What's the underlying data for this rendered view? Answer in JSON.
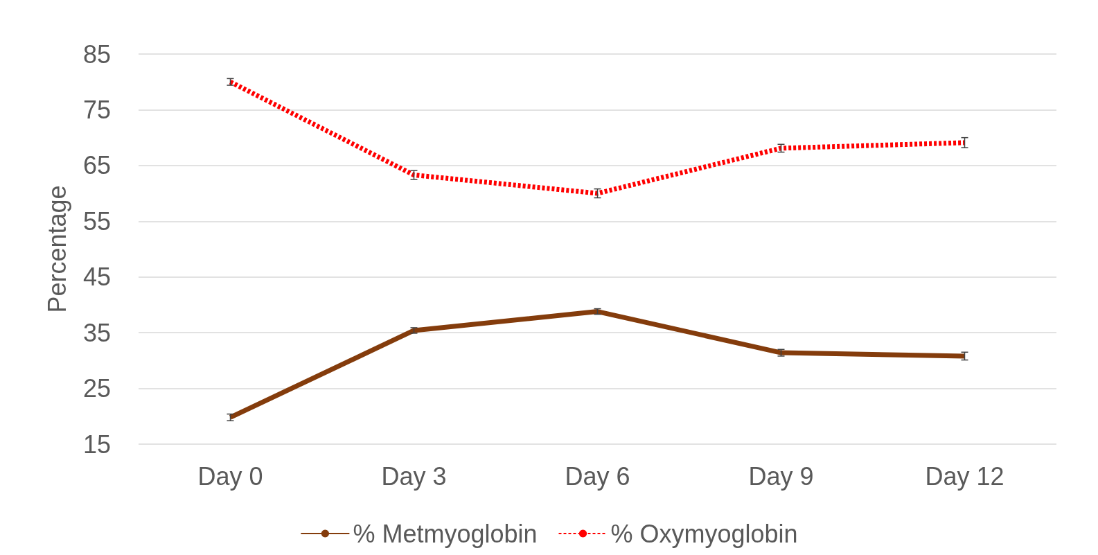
{
  "chart_data": {
    "type": "line",
    "ylabel": "Percentage",
    "categories": [
      "Day 0",
      "Day 3",
      "Day 6",
      "Day 9",
      "Day 12"
    ],
    "series": [
      {
        "name": "% Metmyoglobin",
        "color": "#843c0c",
        "line_style": "solid",
        "values": [
          19.8,
          35.4,
          38.8,
          31.4,
          30.8
        ],
        "errors": [
          0.6,
          0.5,
          0.5,
          0.6,
          0.7
        ]
      },
      {
        "name": "% Oxymyoglobin",
        "color": "#ff0000",
        "line_style": "dashed",
        "values": [
          80.0,
          63.3,
          60.0,
          68.1,
          69.1
        ],
        "errors": [
          0.6,
          0.8,
          0.8,
          0.7,
          0.9
        ]
      }
    ],
    "ylim": [
      15,
      85
    ],
    "yticks": [
      15,
      25,
      35,
      45,
      55,
      65,
      75,
      85
    ],
    "grid": "y",
    "legend": "bottom",
    "marker": "none"
  }
}
